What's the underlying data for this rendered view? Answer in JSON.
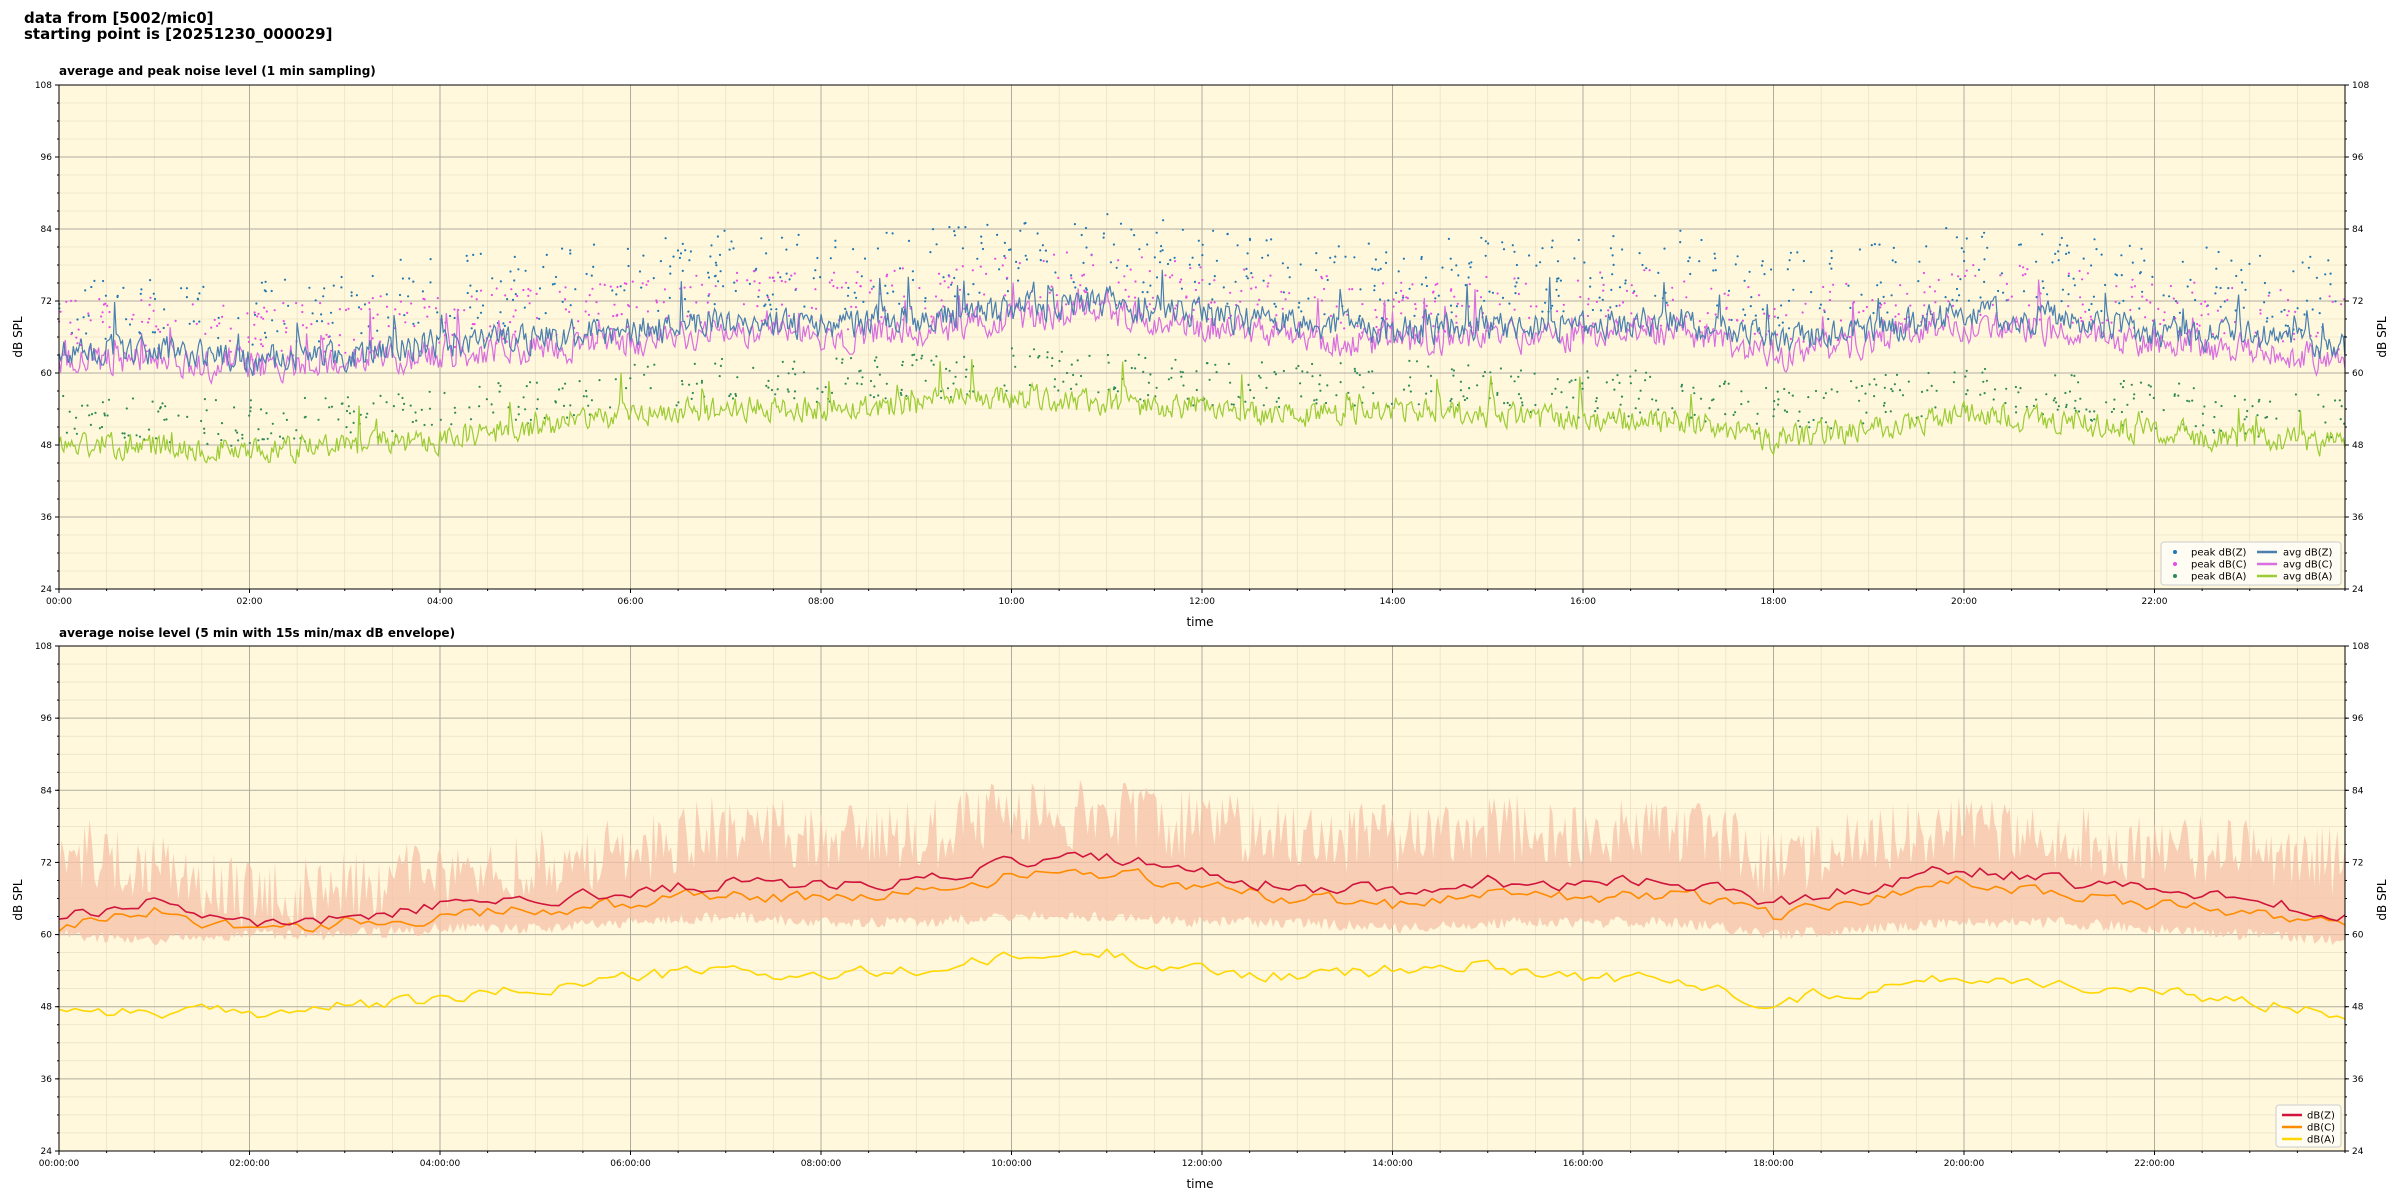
{
  "header": {
    "line1": "data from [5002/mic0]",
    "line2": "starting point is [20251230_000029]"
  },
  "chart_data": [
    {
      "type": "scatter",
      "title": "average and peak noise level (1 min sampling)",
      "xlabel": "time",
      "ylabel": "dB SPL",
      "ylim": [
        24,
        108
      ],
      "yticks": [
        "24",
        "36",
        "48",
        "60",
        "72",
        "84",
        "96",
        "108"
      ],
      "xlim_hours": [
        0,
        24
      ],
      "xticks": [
        "00:00",
        "02:00",
        "04:00",
        "06:00",
        "08:00",
        "10:00",
        "12:00",
        "14:00",
        "16:00",
        "18:00",
        "20:00",
        "22:00"
      ],
      "grid": true,
      "legend_position": "bottom-right",
      "colors": {
        "peak_z": "#1f77b4",
        "peak_c": "#e64ce6",
        "peak_a": "#2e8b57",
        "avg_z": "#4a7fb0",
        "avg_c": "#d86ee0",
        "avg_a": "#9ccc34"
      },
      "legend": [
        {
          "label": "peak dB(Z)",
          "kind": "dot",
          "color": "#1f77b4"
        },
        {
          "label": "peak dB(C)",
          "kind": "dot",
          "color": "#e64ce6"
        },
        {
          "label": "peak dB(A)",
          "kind": "dot",
          "color": "#2e8b57"
        },
        {
          "label": "avg dB(Z)",
          "kind": "line",
          "color": "#4a7fb0"
        },
        {
          "label": "avg dB(C)",
          "kind": "line",
          "color": "#d86ee0"
        },
        {
          "label": "avg dB(A)",
          "kind": "line",
          "color": "#9ccc34"
        }
      ],
      "series_keypoints": {
        "hours": [
          0,
          1,
          2,
          3,
          4,
          5,
          6,
          7,
          8,
          9,
          10,
          11,
          12,
          13,
          14,
          15,
          16,
          17,
          18,
          19,
          20,
          21,
          22,
          23,
          24
        ],
        "avg_z": [
          63,
          64,
          62,
          63,
          65,
          66,
          67,
          69,
          68,
          69,
          71,
          72,
          70,
          68,
          67,
          68,
          68,
          69,
          65,
          67,
          70,
          69,
          67,
          66,
          64
        ],
        "avg_c": [
          62,
          62,
          61,
          62,
          63,
          64,
          65,
          67,
          66,
          67,
          69,
          70,
          68,
          66,
          65,
          66,
          66,
          67,
          63,
          65,
          68,
          67,
          65,
          64,
          62
        ],
        "avg_a": [
          48,
          48,
          47,
          48,
          49,
          51,
          53,
          54,
          54,
          55,
          56,
          55,
          54,
          53,
          54,
          53,
          52,
          52,
          49,
          51,
          53,
          52,
          50,
          49,
          48
        ]
      }
    },
    {
      "type": "line",
      "title": "average noise level (5 min with 15s min/max dB envelope)",
      "xlabel": "time",
      "ylabel": "dB SPL",
      "ylim": [
        24,
        108
      ],
      "yticks": [
        "24",
        "36",
        "48",
        "60",
        "72",
        "84",
        "96",
        "108"
      ],
      "xlim_hours": [
        0,
        24
      ],
      "xticks": [
        "00:00:00",
        "02:00:00",
        "04:00:00",
        "06:00:00",
        "08:00:00",
        "10:00:00",
        "12:00:00",
        "14:00:00",
        "16:00:00",
        "18:00:00",
        "20:00:00",
        "22:00:00"
      ],
      "grid": true,
      "legend_position": "bottom-right",
      "colors": {
        "z": "#d0143c",
        "c": "#ff8c00",
        "a": "#ffd700",
        "envelope": "#f6c2a8"
      },
      "legend": [
        {
          "label": "dB(Z)",
          "kind": "line",
          "color": "#d0143c"
        },
        {
          "label": "dB(C)",
          "kind": "line",
          "color": "#ff8c00"
        },
        {
          "label": "dB(A)",
          "kind": "line",
          "color": "#ffd700"
        }
      ],
      "series_keypoints": {
        "hours": [
          0,
          1,
          2,
          3,
          4,
          5,
          6,
          7,
          8,
          9,
          10,
          11,
          12,
          13,
          14,
          15,
          16,
          17,
          18,
          19,
          20,
          21,
          22,
          23,
          24
        ],
        "z": [
          63,
          66,
          62,
          63,
          65,
          66,
          67,
          69,
          68,
          69,
          72,
          73,
          70,
          68,
          67,
          69,
          68,
          69,
          65,
          68,
          71,
          69,
          67,
          66,
          63
        ],
        "c": [
          61,
          64,
          61,
          62,
          63,
          64,
          65,
          67,
          66,
          67,
          70,
          70,
          68,
          66,
          65,
          67,
          66,
          67,
          63,
          66,
          69,
          67,
          65,
          64,
          61
        ],
        "a": [
          48,
          47,
          47,
          48,
          49,
          51,
          53,
          54,
          53,
          54,
          56,
          57,
          54,
          53,
          54,
          55,
          53,
          52,
          49,
          51,
          53,
          52,
          50,
          49,
          47
        ],
        "env_low": [
          59,
          58,
          59,
          59,
          60,
          60,
          61,
          62,
          61,
          61,
          62,
          62,
          61,
          61,
          60,
          61,
          61,
          61,
          59,
          60,
          61,
          61,
          60,
          59,
          58
        ],
        "env_high": [
          80,
          78,
          72,
          74,
          76,
          78,
          80,
          84,
          82,
          82,
          86,
          86,
          84,
          82,
          82,
          84,
          82,
          84,
          78,
          82,
          84,
          82,
          80,
          80,
          78
        ]
      }
    }
  ]
}
